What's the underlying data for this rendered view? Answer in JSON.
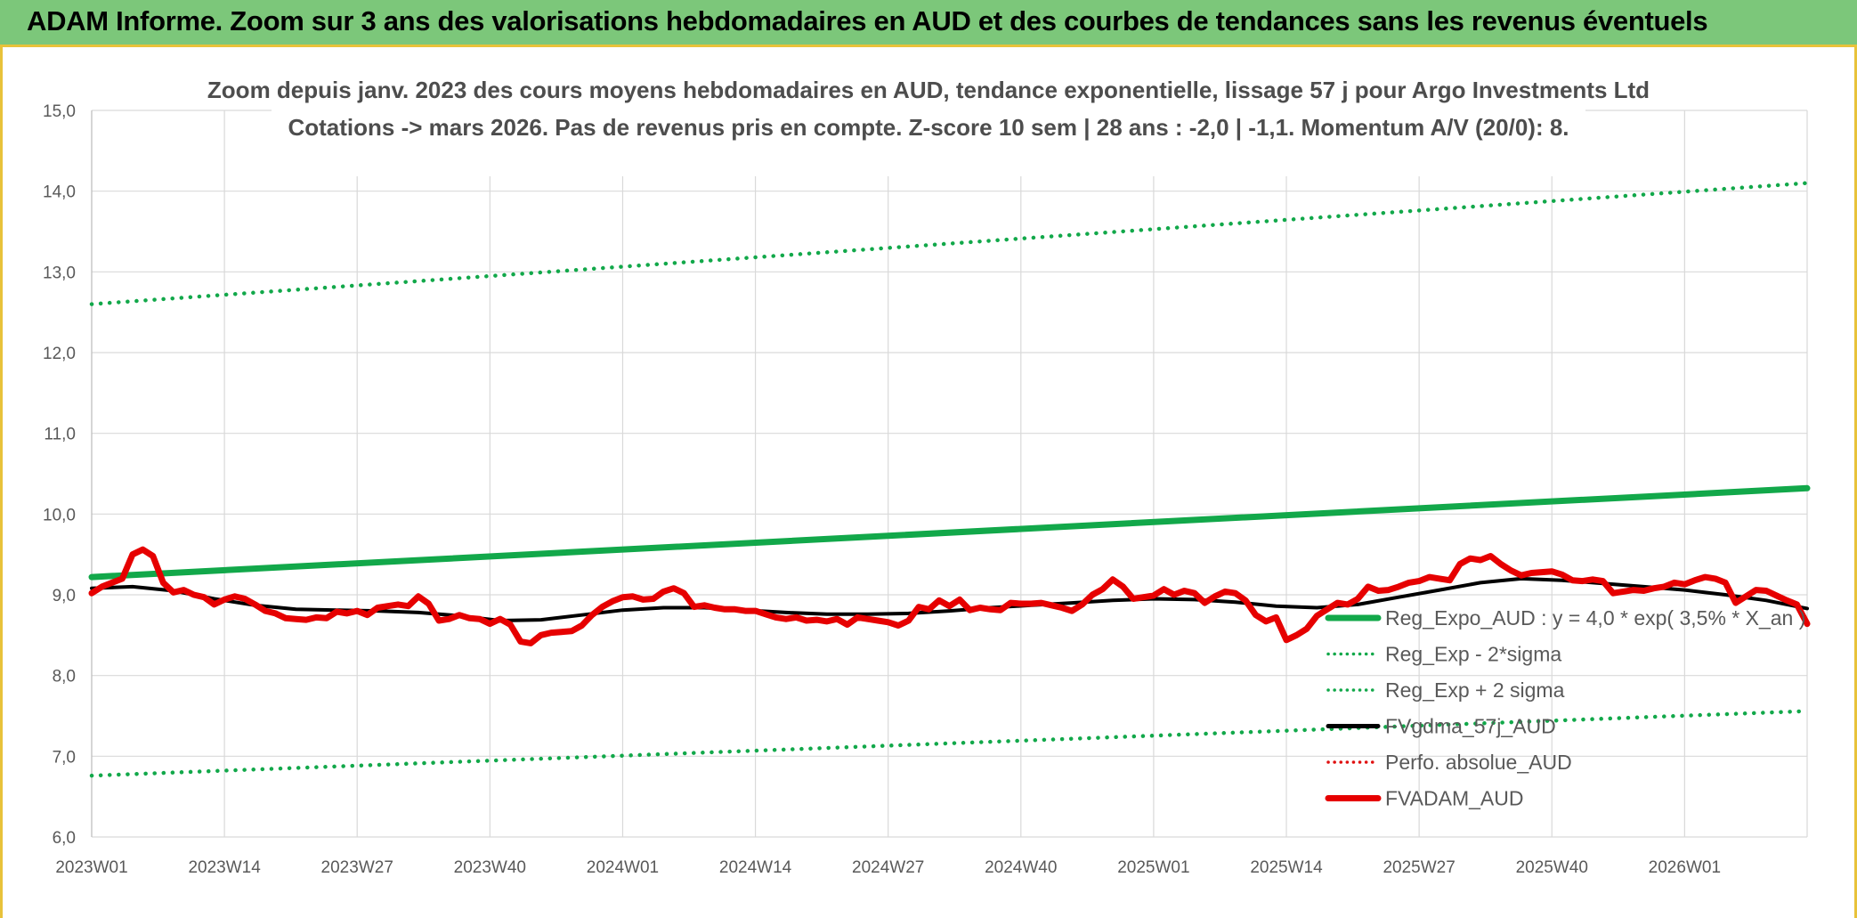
{
  "banner": {
    "title": "ADAM Informe. Zoom sur 3 ans des valorisations hebdomadaires en AUD et des courbes de tendances sans les revenus éventuels"
  },
  "chart_data": {
    "type": "line",
    "title": "Zoom depuis janv. 2023 des cours moyens hebdomadaires en AUD, tendance exponentielle, lissage 57 j pour Argo Investments Ltd",
    "subtitle": "Cotations -> mars 2026. Pas de revenus pris en compte. Z-score 10 sem | 28 ans : -2,0 | -1,1. Momentum A/V (20/0): 8.",
    "xlabel": "",
    "ylabel": "",
    "ylim": [
      6.0,
      15.0
    ],
    "yticks": [
      "6,0",
      "7,0",
      "8,0",
      "9,0",
      "10,0",
      "11,0",
      "12,0",
      "13,0",
      "14,0",
      "15,0"
    ],
    "x_week_range": [
      0,
      168
    ],
    "xticks": [
      {
        "label": "2023W01",
        "week": 0
      },
      {
        "label": "2023W14",
        "week": 13
      },
      {
        "label": "2023W27",
        "week": 26
      },
      {
        "label": "2023W40",
        "week": 39
      },
      {
        "label": "2024W01",
        "week": 52
      },
      {
        "label": "2024W14",
        "week": 65
      },
      {
        "label": "2024W27",
        "week": 78
      },
      {
        "label": "2024W40",
        "week": 91
      },
      {
        "label": "2025W01",
        "week": 104
      },
      {
        "label": "2025W14",
        "week": 117
      },
      {
        "label": "2025W27",
        "week": 130
      },
      {
        "label": "2025W40",
        "week": 143
      },
      {
        "label": "2026W01",
        "week": 156
      }
    ],
    "grid": true,
    "legend_position": "right",
    "series": [
      {
        "name": "Reg_Expo_AUD : y = 4,0 * exp( 3,5% *  X_an )",
        "color": "#12a84a",
        "style": "solid-thick",
        "x": [
          0,
          168
        ],
        "values": [
          9.22,
          10.32
        ]
      },
      {
        "name": "Reg_Exp - 2*sigma",
        "color": "#12a84a",
        "style": "dotted",
        "x": [
          0,
          168
        ],
        "values": [
          6.76,
          7.56
        ]
      },
      {
        "name": "Reg_Exp + 2 sigma",
        "color": "#12a84a",
        "style": "dotted",
        "x": [
          0,
          168
        ],
        "values": [
          12.6,
          14.1
        ]
      },
      {
        "name": "FVgdma_57j_AUD",
        "color": "#000000",
        "style": "solid",
        "x": [
          0,
          4,
          8,
          12,
          16,
          20,
          24,
          28,
          32,
          36,
          40,
          44,
          48,
          52,
          56,
          60,
          64,
          68,
          72,
          76,
          80,
          84,
          88,
          92,
          96,
          100,
          104,
          108,
          112,
          116,
          120,
          124,
          128,
          132,
          136,
          140,
          144,
          148,
          152,
          156,
          160,
          164,
          168
        ],
        "values": [
          9.08,
          9.1,
          9.05,
          8.95,
          8.87,
          8.82,
          8.81,
          8.8,
          8.78,
          8.74,
          8.68,
          8.69,
          8.75,
          8.81,
          8.84,
          8.84,
          8.81,
          8.78,
          8.76,
          8.76,
          8.77,
          8.8,
          8.84,
          8.87,
          8.9,
          8.93,
          8.95,
          8.94,
          8.91,
          8.86,
          8.84,
          8.88,
          8.97,
          9.06,
          9.15,
          9.2,
          9.18,
          9.14,
          9.1,
          9.06,
          9.0,
          8.93,
          8.83
        ]
      },
      {
        "name": "Perfo. absolue_AUD",
        "color": "#e01010",
        "style": "dotted",
        "x": [],
        "values": []
      },
      {
        "name": "FVADAM_AUD",
        "color": "#e60000",
        "style": "solid-thick",
        "x": [
          0,
          1,
          2,
          3,
          4,
          5,
          6,
          7,
          8,
          9,
          10,
          11,
          12,
          13,
          14,
          15,
          16,
          17,
          18,
          19,
          20,
          21,
          22,
          23,
          24,
          25,
          26,
          27,
          28,
          29,
          30,
          31,
          32,
          33,
          34,
          35,
          36,
          37,
          38,
          39,
          40,
          41,
          42,
          43,
          44,
          45,
          46,
          47,
          48,
          49,
          50,
          51,
          52,
          53,
          54,
          55,
          56,
          57,
          58,
          59,
          60,
          61,
          62,
          63,
          64,
          65,
          66,
          67,
          68,
          69,
          70,
          71,
          72,
          73,
          74,
          75,
          76,
          77,
          78,
          79,
          80,
          81,
          82,
          83,
          84,
          85,
          86,
          87,
          88,
          89,
          90,
          91,
          92,
          93,
          94,
          95,
          96,
          97,
          98,
          99,
          100,
          101,
          102,
          103,
          104,
          105,
          106,
          107,
          108,
          109,
          110,
          111,
          112,
          113,
          114,
          115,
          116,
          117,
          118,
          119,
          120,
          121,
          122,
          123,
          124,
          125,
          126,
          127,
          128,
          129,
          130,
          131,
          132,
          133,
          134,
          135,
          136,
          137,
          138,
          139,
          140,
          141,
          142,
          143,
          144,
          145,
          146,
          147,
          148,
          149,
          150,
          151,
          152,
          153,
          154,
          155,
          156,
          157,
          158,
          159,
          160,
          161,
          162,
          163,
          164,
          165,
          166,
          167,
          168
        ],
        "values": [
          9.02,
          9.1,
          9.15,
          9.2,
          9.5,
          9.56,
          9.48,
          9.15,
          9.03,
          9.06,
          9.0,
          8.97,
          8.88,
          8.94,
          8.98,
          8.95,
          8.88,
          8.8,
          8.77,
          8.71,
          8.7,
          8.69,
          8.72,
          8.71,
          8.79,
          8.77,
          8.8,
          8.75,
          8.84,
          8.86,
          8.88,
          8.86,
          8.98,
          8.89,
          8.68,
          8.7,
          8.75,
          8.71,
          8.7,
          8.64,
          8.7,
          8.63,
          8.42,
          8.4,
          8.5,
          8.53,
          8.54,
          8.55,
          8.62,
          8.75,
          8.85,
          8.92,
          8.97,
          8.98,
          8.94,
          8.95,
          9.04,
          9.08,
          9.02,
          8.85,
          8.87,
          8.84,
          8.82,
          8.82,
          8.8,
          8.8,
          8.76,
          8.72,
          8.7,
          8.72,
          8.68,
          8.69,
          8.67,
          8.7,
          8.63,
          8.72,
          8.7,
          8.68,
          8.66,
          8.62,
          8.68,
          8.85,
          8.82,
          8.93,
          8.86,
          8.94,
          8.81,
          8.84,
          8.82,
          8.81,
          8.9,
          8.89,
          8.89,
          8.9,
          8.87,
          8.84,
          8.8,
          8.88,
          9.0,
          9.07,
          9.19,
          9.1,
          8.95,
          8.97,
          8.99,
          9.07,
          9.0,
          9.05,
          9.02,
          8.9,
          8.98,
          9.04,
          9.02,
          8.93,
          8.75,
          8.67,
          8.72,
          8.44,
          8.5,
          8.58,
          8.74,
          8.82,
          8.9,
          8.88,
          8.95,
          9.1,
          9.05,
          9.06,
          9.1,
          9.15,
          9.17,
          9.22,
          9.2,
          9.18,
          9.38,
          9.45,
          9.43,
          9.48,
          9.38,
          9.3,
          9.24,
          9.27,
          9.28,
          9.29,
          9.25,
          9.18,
          9.17,
          9.19,
          9.17,
          9.02,
          9.04,
          9.06,
          9.05,
          9.08,
          9.1,
          9.15,
          9.13,
          9.18,
          9.22,
          9.2,
          9.15,
          8.9,
          8.98,
          9.06,
          9.05,
          8.99,
          8.93,
          8.88,
          8.64
        ]
      }
    ]
  }
}
